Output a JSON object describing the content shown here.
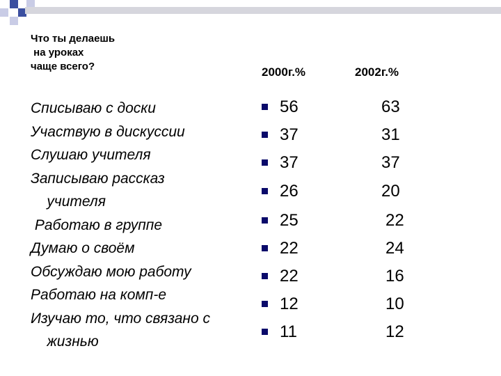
{
  "question": "Что ты делаешь\n на уроках\nчаще всего?",
  "columns": [
    "2000г.%",
    "2002г.%"
  ],
  "labels": "Списываю с доски\nУчаствую в дискуссии\nСлушаю учителя\nЗаписываю рассказ\n    учителя\n Работаю в группе\nДумаю о своём\nОбсуждаю мою работу\nРаботаю на комп-е\nИзучаю то, что связано с\n    жизнью",
  "rows": [
    {
      "label": "Списываю с доски",
      "y2000": "56",
      "y2002": "63"
    },
    {
      "label": "Участвую в дискуссии",
      "y2000": "37",
      "y2002": "31"
    },
    {
      "label": "Слушаю учителя",
      "y2000": "37",
      "y2002": "37"
    },
    {
      "label": "Записываю рассказ учителя",
      "y2000": "26",
      "y2002": "20"
    },
    {
      "label": "Работаю в группе",
      "y2000": "25",
      "y2002": "22"
    },
    {
      "label": "Думаю о своём",
      "y2000": "22",
      "y2002": "24"
    },
    {
      "label": "Обсуждаю мою работу",
      "y2000": "22",
      "y2002": "16"
    },
    {
      "label": "Работаю на комп-е",
      "y2000": "12",
      "y2002": "10"
    },
    {
      "label": "Изучаю то, что связано с жизнью",
      "y2000": "11",
      "y2002": "12"
    }
  ],
  "colors": {
    "bullet": "#0a0a6a",
    "deco_blue": "#3b4fa0",
    "deco_light": "#c9cce6"
  }
}
